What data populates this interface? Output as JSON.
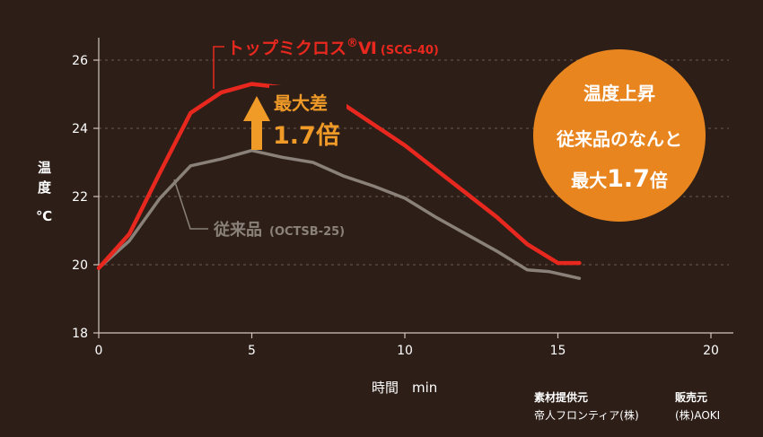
{
  "chart_data": {
    "type": "line",
    "x": [
      0,
      1,
      2,
      3,
      4,
      5,
      6,
      7,
      8,
      9,
      10,
      11,
      12,
      13,
      14,
      15,
      15.7
    ],
    "series": [
      {
        "name": "トップミクロス",
        "name_sup": "®",
        "name_tail": "Ⅵ",
        "name_code": "(SCG-40)",
        "color": "#e8281e",
        "x": [
          0,
          1,
          2,
          3,
          4,
          5,
          6,
          8,
          10,
          11,
          12,
          13,
          14,
          15,
          15.7
        ],
        "values": [
          19.9,
          20.9,
          22.7,
          24.45,
          25.05,
          25.3,
          25.2,
          24.7,
          23.5,
          22.8,
          22.1,
          21.4,
          20.6,
          20.05,
          20.05
        ]
      },
      {
        "name": "従来品",
        "name_code": "(OCTSB-25)",
        "color": "#8a817a",
        "x": [
          0,
          1,
          2,
          3,
          4,
          5,
          6,
          7,
          8,
          9,
          10,
          11,
          12,
          13,
          14,
          14.7,
          15.7
        ],
        "values": [
          19.9,
          20.7,
          21.95,
          22.9,
          23.1,
          23.35,
          23.15,
          23.0,
          22.6,
          22.3,
          21.95,
          21.4,
          20.9,
          20.4,
          19.85,
          19.8,
          19.6
        ]
      }
    ],
    "xlabel": "時間　min",
    "ylabel": [
      "温",
      "度",
      "℃"
    ],
    "xlim": [
      0,
      20
    ],
    "ylim": [
      18,
      26
    ],
    "x_ticks": [
      "0",
      "5",
      "10",
      "15",
      "20"
    ],
    "y_ticks": [
      "18",
      "20",
      "22",
      "24",
      "26"
    ],
    "grid": "horizontal-dashed",
    "annotation": {
      "line1": "最大差",
      "line2": "1.7倍",
      "color": "#f09a28"
    }
  },
  "badge": {
    "line1": "温度上昇",
    "line2": "従来品のなんと",
    "line3_prefix": "最大",
    "line3_big": "1.7",
    "line3_suffix": "倍",
    "color": "#e8851f"
  },
  "credits": {
    "material_title": "素材提供元",
    "material_name": "帝人フロンティア(株)",
    "seller_title": "販売元",
    "seller_name": "(株)AOKI"
  }
}
